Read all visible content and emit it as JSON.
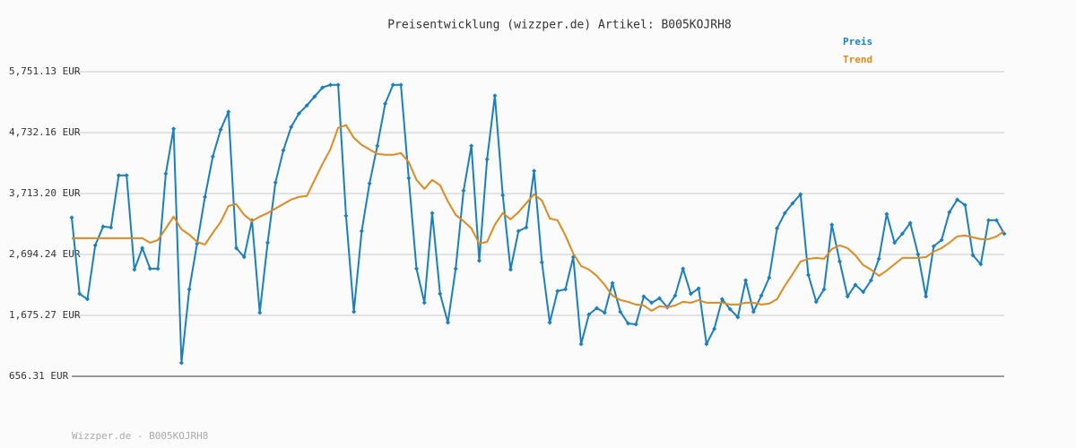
{
  "chart_data": {
    "type": "line",
    "title": "Preisentwicklung (wizzper.de) Artikel: B005KOJRH8",
    "footer": "Wizzper.de - B005KOJRH8",
    "legend": "top-right",
    "grid": true,
    "ylim": [
      656.31,
      5751.13
    ],
    "yticks": [
      {
        "value": 656.31,
        "label": "656.31 EUR"
      },
      {
        "value": 1675.27,
        "label": "1,675.27 EUR"
      },
      {
        "value": 2694.24,
        "label": "2,694.24 EUR"
      },
      {
        "value": 3713.2,
        "label": "3,713.20 EUR"
      },
      {
        "value": 4732.16,
        "label": "4,732.16 EUR"
      },
      {
        "value": 5751.13,
        "label": "5,751.13 EUR"
      }
    ],
    "categories": [
      null,
      null,
      null,
      null,
      null,
      null,
      null,
      null,
      null,
      null,
      null,
      null,
      null,
      null,
      null,
      null,
      null,
      null,
      null,
      null,
      null,
      null,
      null,
      null,
      null,
      null,
      null,
      null,
      null,
      null,
      null,
      null,
      null,
      null,
      null,
      null,
      null,
      null,
      null,
      null,
      null,
      null,
      null,
      null,
      null,
      null,
      null,
      null,
      null,
      null,
      null,
      null,
      null,
      null,
      null,
      null,
      null,
      null,
      null,
      null,
      null,
      null,
      null,
      null,
      null,
      null,
      null,
      null,
      null,
      null,
      null,
      null,
      null,
      null,
      null,
      null,
      null,
      null,
      null,
      null,
      null,
      null,
      null,
      null,
      null,
      null,
      null,
      null,
      null,
      null,
      null,
      null,
      null,
      null,
      null,
      null,
      null,
      null,
      null,
      null,
      null,
      null,
      null,
      null,
      null,
      null,
      null,
      null,
      null,
      null,
      null,
      null,
      null,
      null,
      null,
      null,
      null,
      null,
      null,
      null
    ],
    "series": [
      {
        "name": "Preis",
        "color": "#1a7fbf",
        "markers": true,
        "values": [
          3311,
          2036,
          1946,
          2846,
          3161,
          3146,
          4016,
          4016,
          2441,
          2801,
          2456,
          2456,
          4046,
          4796,
          881,
          2111,
          2876,
          3656,
          4331,
          4781,
          5081,
          2801,
          2651,
          3266,
          1721,
          2891,
          3896,
          4436,
          4826,
          5051,
          5186,
          5336,
          5486,
          5531,
          5531,
          3341,
          1736,
          3086,
          3881,
          4511,
          5216,
          5531,
          5531,
          3971,
          2456,
          1886,
          3386,
          2036,
          1556,
          2456,
          3761,
          4511,
          2591,
          4286,
          5351,
          3686,
          2441,
          3086,
          3146,
          4091,
          2561,
          1556,
          2081,
          2111,
          2651,
          1196,
          1691,
          1796,
          1721,
          2216,
          1736,
          1541,
          1526,
          1991,
          1886,
          1961,
          1811,
          2006,
          2456,
          2036,
          2126,
          1196,
          1451,
          1946,
          1781,
          1646,
          2261,
          1736,
          2006,
          2306,
          3131,
          3386,
          3551,
          3701,
          2351,
          1901,
          2111,
          3191,
          2576,
          1991,
          2186,
          2066,
          2261,
          2621,
          3371,
          2891,
          3041,
          3221,
          2696,
          1991,
          2831,
          2936,
          3401,
          3611,
          3521,
          2681,
          2531,
          3266,
          3266,
          3041
        ]
      },
      {
        "name": "Trend",
        "color": "#e08a1e",
        "markers": false,
        "values": [
          2966,
          2966,
          2966,
          2966,
          2966,
          2966,
          2966,
          2966,
          2966,
          2966,
          2891,
          2936,
          3131,
          3326,
          3116,
          3026,
          2906,
          2861,
          3056,
          3236,
          3506,
          3536,
          3356,
          3251,
          3326,
          3386,
          3461,
          3536,
          3611,
          3656,
          3671,
          3941,
          4211,
          4451,
          4811,
          4856,
          4646,
          4526,
          4451,
          4376,
          4361,
          4361,
          4391,
          4241,
          3941,
          3791,
          3941,
          3851,
          3581,
          3356,
          3251,
          3131,
          2876,
          2906,
          3191,
          3386,
          3281,
          3401,
          3551,
          3701,
          3596,
          3296,
          3266,
          3011,
          2711,
          2501,
          2441,
          2336,
          2186,
          2006,
          1931,
          1901,
          1856,
          1841,
          1751,
          1826,
          1811,
          1841,
          1901,
          1886,
          1931,
          1886,
          1886,
          1886,
          1856,
          1856,
          1886,
          1886,
          1856,
          1871,
          1946,
          2171,
          2366,
          2576,
          2621,
          2636,
          2621,
          2786,
          2846,
          2801,
          2681,
          2516,
          2441,
          2336,
          2426,
          2531,
          2636,
          2636,
          2636,
          2651,
          2741,
          2801,
          2891,
          2996,
          3011,
          2981,
          2951,
          2951,
          2996,
          3086
        ]
      }
    ]
  }
}
